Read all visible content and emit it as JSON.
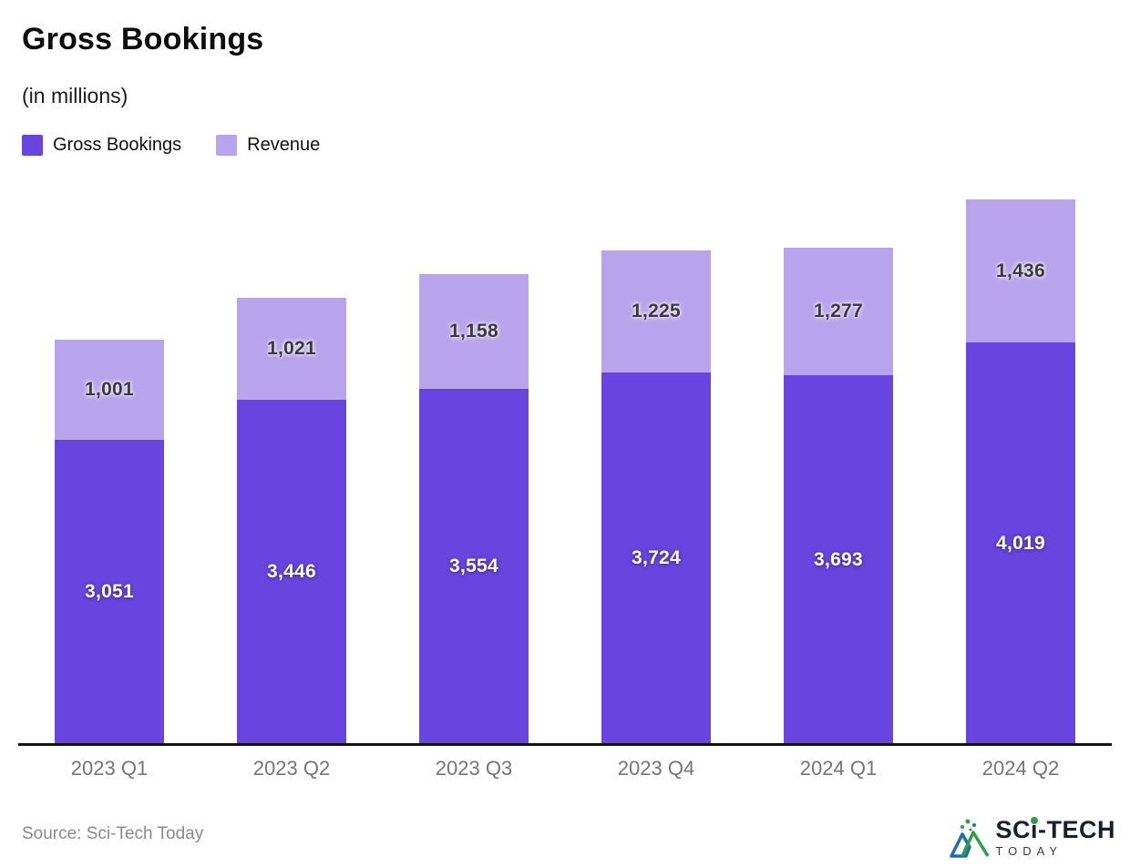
{
  "header": {
    "title": "Gross Bookings",
    "subtitle": "(in millions)"
  },
  "legend": [
    {
      "label": "Gross Bookings",
      "color": "#6845DE"
    },
    {
      "label": "Revenue",
      "color": "#B7A4EC"
    }
  ],
  "chart_data": {
    "type": "bar",
    "stacked": true,
    "title": "Gross Bookings",
    "subtitle": "(in millions)",
    "categories": [
      "2023 Q1",
      "2023 Q2",
      "2023 Q3",
      "2023 Q4",
      "2024 Q1",
      "2024 Q2"
    ],
    "series": [
      {
        "name": "Gross Bookings",
        "color": "#6845DE",
        "values": [
          3051,
          3446,
          3554,
          3724,
          3693,
          4019
        ]
      },
      {
        "name": "Revenue",
        "color": "#B7A4EC",
        "values": [
          1001,
          1021,
          1158,
          1225,
          1277,
          1436
        ]
      }
    ],
    "ylim": [
      0,
      5455
    ],
    "grid": false,
    "legend_position": "top-left",
    "value_labels": "inside-center",
    "xlabel": "",
    "ylabel": ""
  },
  "footer": {
    "source": "Source: Sci-Tech Today",
    "logo": {
      "part1": "SC",
      "part2": "i",
      "part3": "-TECH",
      "line2": "TODAY"
    }
  },
  "colors": {
    "gross_bookings": "#6845DE",
    "revenue": "#B7A4EC",
    "axis_line": "#141414",
    "axis_label": "#757575",
    "source_text": "#8a8a8a",
    "logo_green": "#2f9e44",
    "logo_blue": "#1e6bb8"
  }
}
